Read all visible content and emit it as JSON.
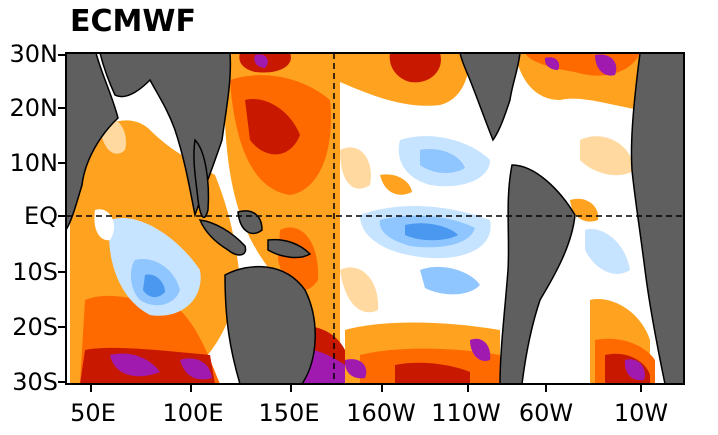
{
  "title": "ECMWF",
  "axes": {
    "lat_labels": [
      "30N",
      "20N",
      "10N",
      "EQ",
      "10S",
      "20S",
      "30S"
    ],
    "lon_labels": [
      "50E",
      "100E",
      "150E",
      "160W",
      "110W",
      "60W",
      "10W"
    ]
  },
  "colors": {
    "land": "#5f5f5f",
    "coast": "#000000",
    "neutral": "#ffffff",
    "warm_light": "#ffd9a0",
    "warm_mid": "#ffa21f",
    "warm_strong": "#ff6a00",
    "warm_deep": "#c81900",
    "warm_extreme": "#a01ab0",
    "cool_light": "#c6e4ff",
    "cool_mid": "#8fc6ff",
    "cool_strong": "#4a98f0"
  }
}
